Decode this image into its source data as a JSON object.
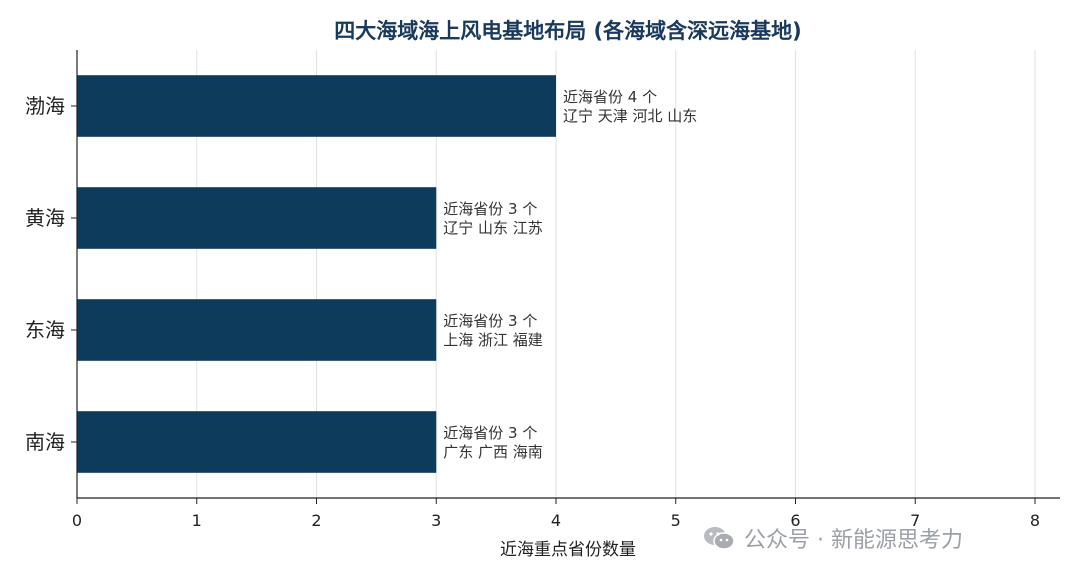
{
  "colors": {
    "bar": "#0d3b5c",
    "title": "#1a3a5c",
    "grid": "#e2e2e2",
    "axis": "#222222",
    "watermark": "#9aa0a6"
  },
  "chart_data": {
    "type": "bar",
    "orientation": "horizontal",
    "title": "四大海域海上风电基地布局 (各海域含深远海基地)",
    "xlabel": "近海重点省份数量",
    "ylabel": "",
    "categories": [
      "渤海",
      "黄海",
      "东海",
      "南海"
    ],
    "values": [
      4,
      3,
      3,
      3
    ],
    "data_labels": [
      [
        "近海省份 4 个",
        "辽宁 天津 河北 山东"
      ],
      [
        "近海省份 3 个",
        "辽宁 山东 江苏"
      ],
      [
        "近海省份 3 个",
        "上海 浙江 福建"
      ],
      [
        "近海省份 3 个",
        "广东 广西 海南"
      ]
    ],
    "xlim": [
      0,
      8
    ],
    "xticks": [
      "0",
      "1",
      "2",
      "3",
      "4",
      "5",
      "6",
      "7",
      "8"
    ],
    "grid": "vertical"
  },
  "watermark": {
    "text": "公众号 · 新能源思考力",
    "icon": "wechat-icon"
  }
}
